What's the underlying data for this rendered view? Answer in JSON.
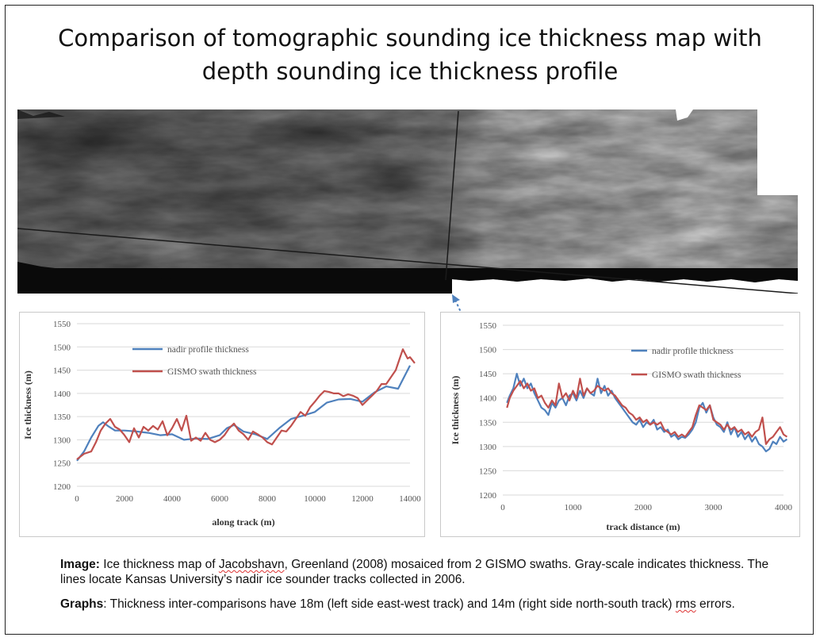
{
  "slide": {
    "title_line1": "Comparison of tomographic sounding ice thickness map with",
    "title_line2": "depth sounding ice thickness profile"
  },
  "caption": {
    "image_label": "Image:",
    "image_text_1": " Ice thickness map of ",
    "image_text_jacobshavn": "Jacobshavn",
    "image_text_2": ", Greenland (2008) mosaiced from 2 GISMO swaths. Gray-scale indicates thickness. The lines locate Kansas University’s nadir ice sounder tracks collected in 2006.",
    "graphs_label": "Graphs",
    "graphs_text_1": ": Thickness inter-comparisons have 18m (left side east-west track) and 14m (right side north-south track) ",
    "graphs_text_rms": "rms",
    "graphs_text_2": " errors."
  },
  "colors": {
    "nadir": "#4f81bd",
    "gismo": "#c0504d",
    "grid": "#d9d9d9",
    "axis_text": "#555555"
  },
  "chart_data": [
    {
      "type": "line",
      "title": "",
      "xlabel": "along track (m)",
      "ylabel": "Ice thickness (m)",
      "xlim": [
        0,
        14000
      ],
      "ylim": [
        1200,
        1550
      ],
      "xticks": [
        0,
        2000,
        4000,
        6000,
        8000,
        10000,
        12000,
        14000
      ],
      "yticks": [
        1200,
        1250,
        1300,
        1350,
        1400,
        1450,
        1500,
        1550
      ],
      "grid": true,
      "legend_position": "top-left",
      "series": [
        {
          "name": "nadir profile thickness",
          "x": [
            0,
            300,
            600,
            900,
            1100,
            1300,
            1600,
            2000,
            2500,
            3000,
            3500,
            4000,
            4500,
            5000,
            5500,
            6000,
            6300,
            6600,
            7000,
            7500,
            8000,
            8500,
            9000,
            9500,
            10000,
            10500,
            11000,
            11500,
            12000,
            12500,
            13000,
            13500,
            14000
          ],
          "y": [
            1255,
            1275,
            1305,
            1330,
            1338,
            1330,
            1320,
            1320,
            1318,
            1315,
            1310,
            1312,
            1300,
            1303,
            1302,
            1310,
            1325,
            1332,
            1318,
            1312,
            1302,
            1325,
            1345,
            1352,
            1360,
            1380,
            1387,
            1388,
            1382,
            1402,
            1415,
            1410,
            1460
          ]
        },
        {
          "name": "GISMO swath thickness",
          "x": [
            0,
            300,
            600,
            800,
            1000,
            1200,
            1400,
            1600,
            1800,
            2000,
            2200,
            2400,
            2600,
            2800,
            3000,
            3200,
            3400,
            3600,
            3800,
            4000,
            4200,
            4400,
            4600,
            4800,
            5000,
            5200,
            5400,
            5600,
            5800,
            6000,
            6200,
            6400,
            6600,
            6800,
            7000,
            7200,
            7400,
            7600,
            7800,
            8000,
            8200,
            8400,
            8600,
            8800,
            9000,
            9200,
            9400,
            9600,
            9800,
            10000,
            10200,
            10400,
            10600,
            10800,
            11000,
            11200,
            11400,
            11600,
            11800,
            12000,
            12200,
            12400,
            12600,
            12800,
            13000,
            13200,
            13400,
            13600,
            13700,
            13800,
            13900,
            14000,
            14200
          ],
          "y": [
            1258,
            1270,
            1275,
            1295,
            1320,
            1335,
            1345,
            1328,
            1322,
            1310,
            1295,
            1325,
            1305,
            1328,
            1320,
            1330,
            1322,
            1340,
            1310,
            1325,
            1345,
            1320,
            1352,
            1298,
            1305,
            1298,
            1315,
            1300,
            1295,
            1300,
            1310,
            1325,
            1335,
            1320,
            1312,
            1300,
            1318,
            1312,
            1305,
            1295,
            1290,
            1305,
            1320,
            1318,
            1330,
            1345,
            1360,
            1352,
            1370,
            1382,
            1395,
            1405,
            1403,
            1400,
            1400,
            1394,
            1398,
            1395,
            1390,
            1375,
            1385,
            1395,
            1405,
            1420,
            1420,
            1435,
            1450,
            1480,
            1495,
            1485,
            1475,
            1478,
            1465
          ]
        }
      ]
    },
    {
      "type": "line",
      "title": "",
      "xlabel": "track distance (m)",
      "ylabel": "Ice thickness (m)",
      "xlim": [
        0,
        4000
      ],
      "ylim": [
        1200,
        1550
      ],
      "xticks": [
        0,
        1000,
        2000,
        3000,
        4000
      ],
      "yticks": [
        1200,
        1250,
        1300,
        1350,
        1400,
        1450,
        1500,
        1550
      ],
      "grid": true,
      "legend_position": "top-right",
      "series": [
        {
          "name": "nadir profile thickness",
          "x": [
            60,
            100,
            150,
            200,
            250,
            300,
            350,
            400,
            450,
            500,
            550,
            600,
            650,
            700,
            750,
            800,
            850,
            900,
            950,
            1000,
            1050,
            1100,
            1150,
            1200,
            1250,
            1300,
            1350,
            1400,
            1450,
            1500,
            1550,
            1600,
            1650,
            1700,
            1750,
            1800,
            1850,
            1900,
            1950,
            2000,
            2050,
            2100,
            2150,
            2200,
            2250,
            2300,
            2350,
            2400,
            2450,
            2500,
            2550,
            2600,
            2650,
            2700,
            2750,
            2800,
            2850,
            2900,
            2950,
            3000,
            3050,
            3100,
            3150,
            3200,
            3250,
            3300,
            3350,
            3400,
            3450,
            3500,
            3550,
            3600,
            3650,
            3700,
            3750,
            3800,
            3850,
            3900,
            3950,
            4000,
            4050
          ],
          "y": [
            1390,
            1405,
            1420,
            1450,
            1425,
            1440,
            1420,
            1430,
            1410,
            1395,
            1380,
            1375,
            1365,
            1390,
            1380,
            1395,
            1400,
            1385,
            1405,
            1410,
            1395,
            1415,
            1400,
            1420,
            1410,
            1405,
            1440,
            1410,
            1425,
            1405,
            1415,
            1400,
            1390,
            1380,
            1370,
            1360,
            1350,
            1345,
            1355,
            1340,
            1350,
            1345,
            1355,
            1335,
            1340,
            1330,
            1335,
            1320,
            1325,
            1315,
            1320,
            1318,
            1325,
            1335,
            1350,
            1380,
            1390,
            1370,
            1385,
            1360,
            1345,
            1340,
            1330,
            1350,
            1325,
            1340,
            1320,
            1330,
            1315,
            1325,
            1310,
            1320,
            1305,
            1300,
            1290,
            1295,
            1310,
            1305,
            1320,
            1310,
            1315
          ]
        },
        {
          "name": "GISMO swath thickness",
          "x": [
            60,
            100,
            150,
            200,
            250,
            300,
            350,
            400,
            450,
            500,
            550,
            600,
            650,
            700,
            750,
            800,
            850,
            900,
            950,
            1000,
            1050,
            1100,
            1150,
            1200,
            1250,
            1300,
            1350,
            1400,
            1450,
            1500,
            1550,
            1600,
            1650,
            1700,
            1750,
            1800,
            1850,
            1900,
            1950,
            2000,
            2050,
            2100,
            2150,
            2200,
            2250,
            2300,
            2350,
            2400,
            2450,
            2500,
            2550,
            2600,
            2650,
            2700,
            2750,
            2800,
            2850,
            2900,
            2950,
            3000,
            3050,
            3100,
            3150,
            3200,
            3250,
            3300,
            3350,
            3400,
            3450,
            3500,
            3550,
            3600,
            3650,
            3700,
            3750,
            3800,
            3850,
            3900,
            3950,
            4000,
            4050
          ],
          "y": [
            1380,
            1400,
            1415,
            1425,
            1435,
            1420,
            1430,
            1415,
            1420,
            1400,
            1405,
            1390,
            1380,
            1395,
            1385,
            1430,
            1400,
            1410,
            1395,
            1415,
            1400,
            1440,
            1405,
            1420,
            1410,
            1415,
            1425,
            1420,
            1415,
            1420,
            1410,
            1405,
            1395,
            1385,
            1380,
            1370,
            1365,
            1355,
            1360,
            1350,
            1355,
            1345,
            1350,
            1345,
            1350,
            1335,
            1330,
            1325,
            1330,
            1320,
            1325,
            1320,
            1330,
            1340,
            1365,
            1385,
            1380,
            1375,
            1385,
            1355,
            1350,
            1345,
            1335,
            1345,
            1335,
            1340,
            1330,
            1335,
            1325,
            1330,
            1320,
            1330,
            1335,
            1360,
            1305,
            1315,
            1320,
            1330,
            1340,
            1325,
            1320
          ]
        }
      ]
    }
  ]
}
